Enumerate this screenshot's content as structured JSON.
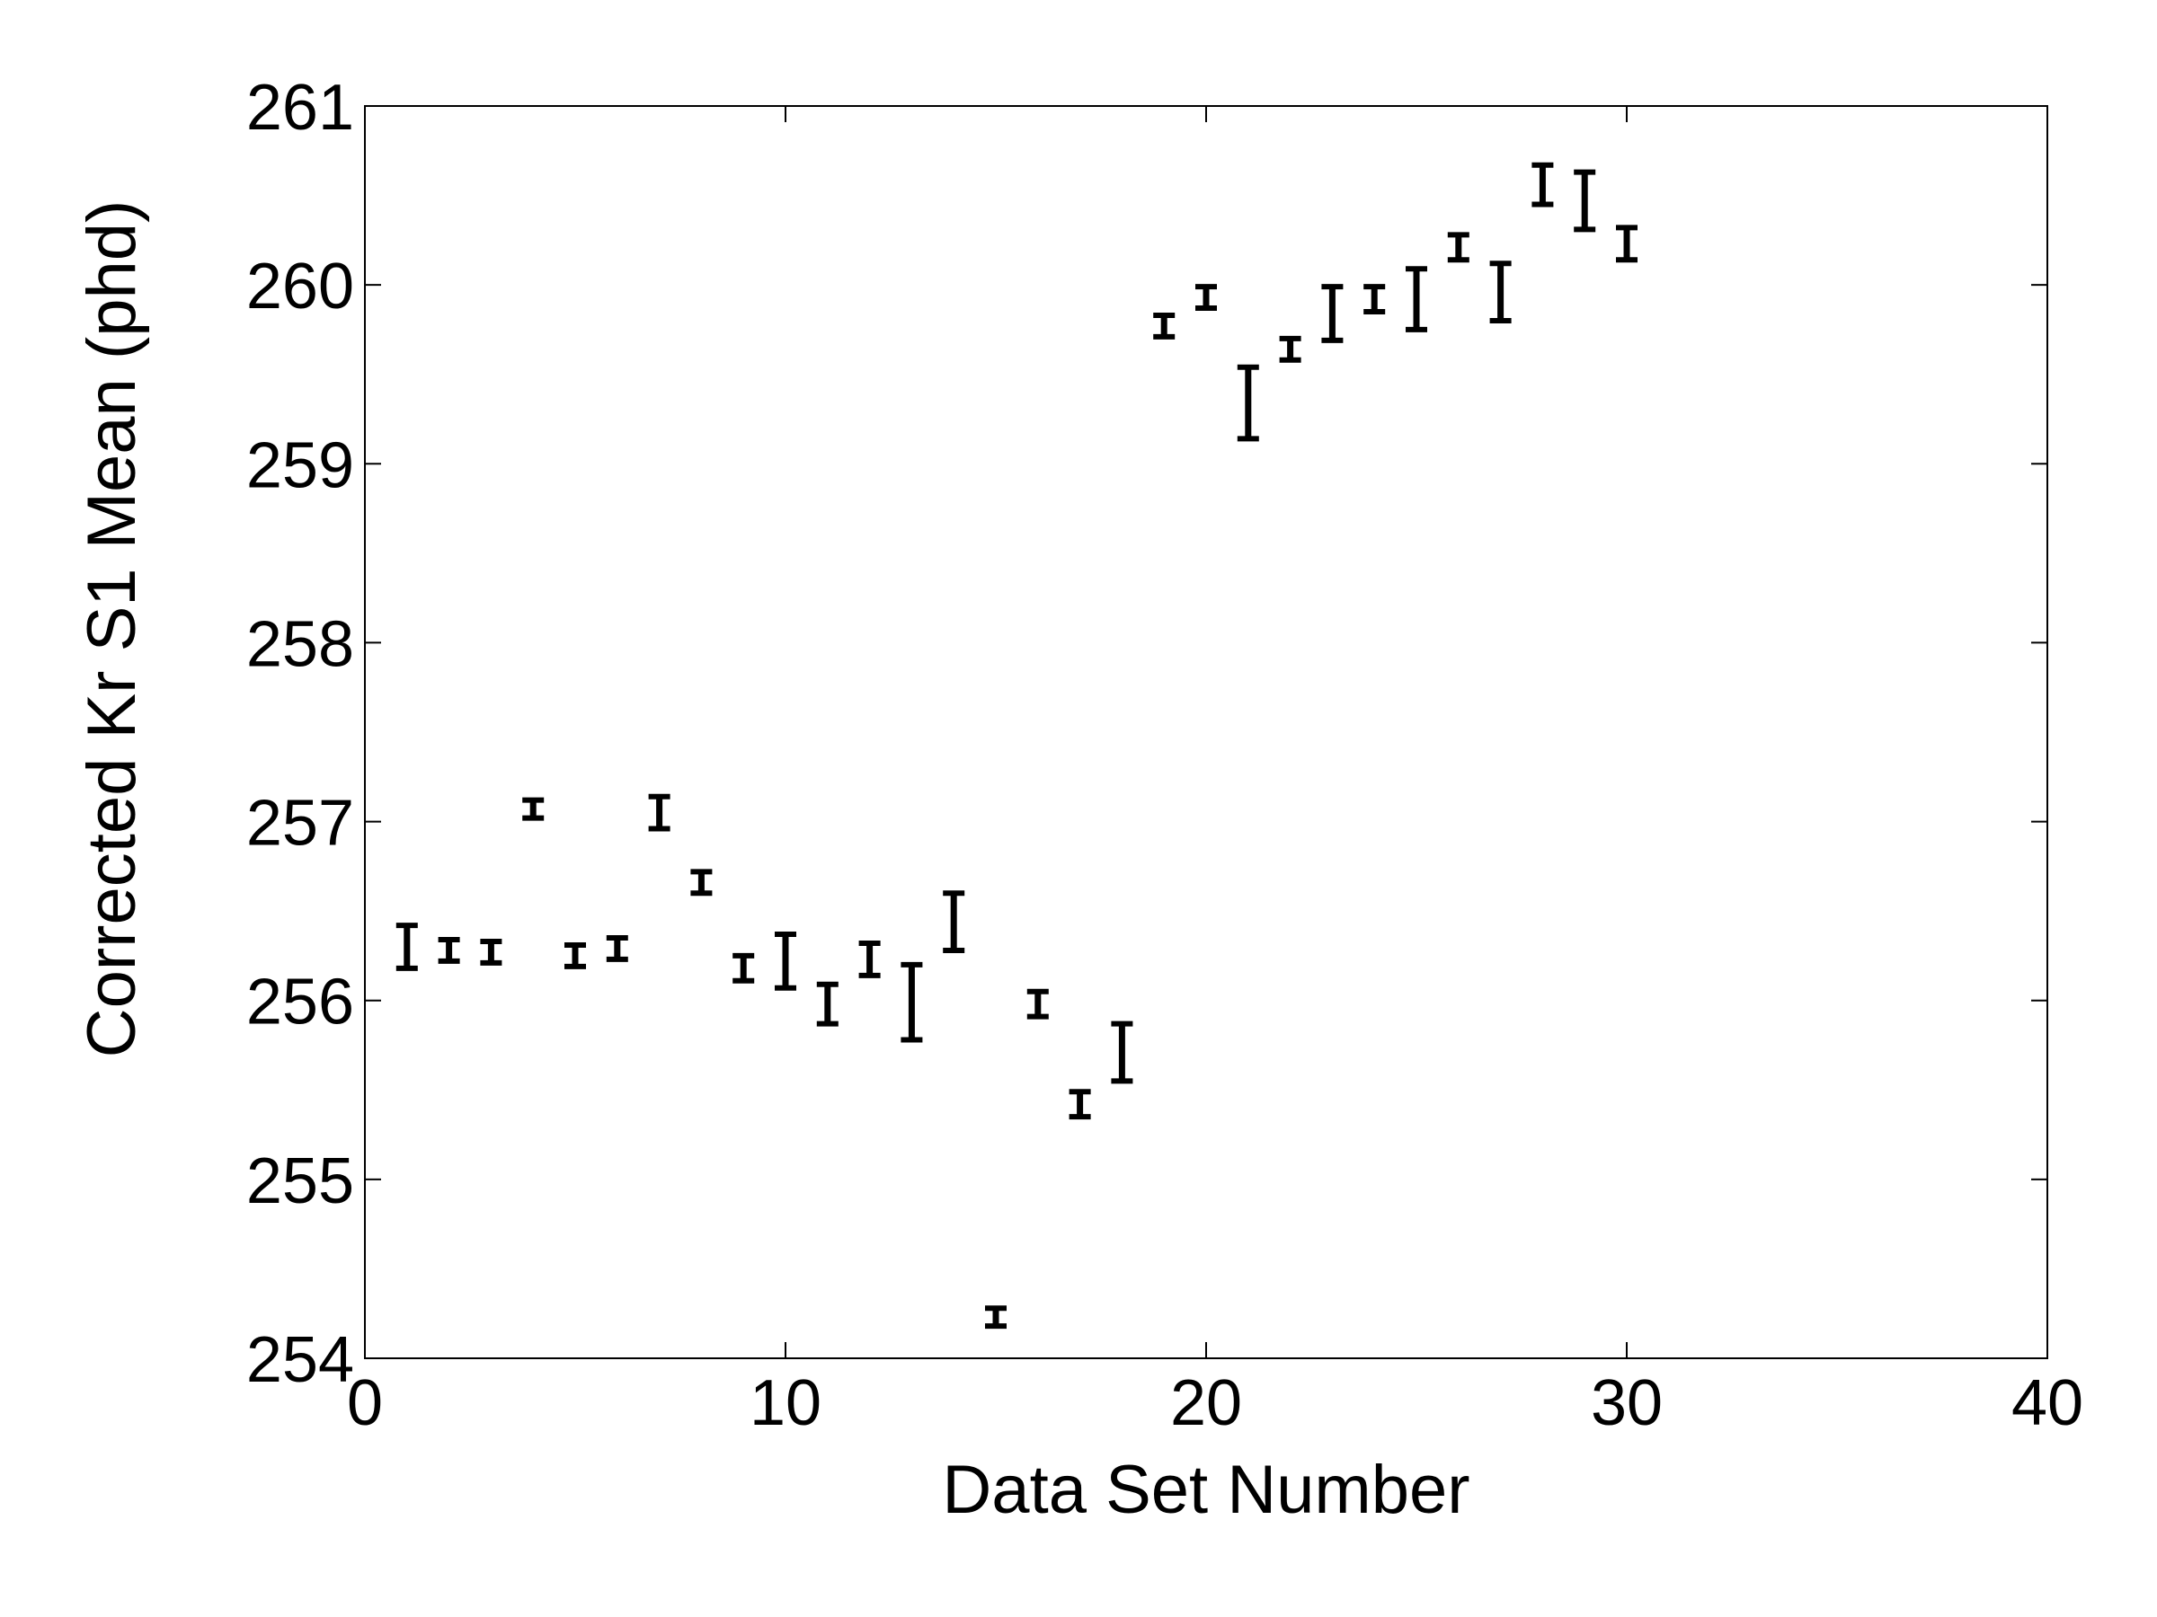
{
  "chart_data": {
    "type": "scatter",
    "title": "",
    "xlabel": "Data Set Number",
    "ylabel": "Corrected Kr S1 Mean (phd)",
    "xlim": [
      0,
      40
    ],
    "ylim": [
      254,
      261
    ],
    "xticks": [
      "0",
      "10",
      "20",
      "30",
      "40"
    ],
    "yticks": [
      "254",
      "255",
      "256",
      "257",
      "258",
      "259",
      "260",
      "261"
    ],
    "grid": false,
    "legend": "none",
    "color": "#000000",
    "points": [
      {
        "x": 1,
        "y": 256.3,
        "err": 0.12
      },
      {
        "x": 2,
        "y": 256.28,
        "err": 0.06
      },
      {
        "x": 3,
        "y": 256.27,
        "err": 0.06
      },
      {
        "x": 4,
        "y": 257.07,
        "err": 0.05
      },
      {
        "x": 5,
        "y": 256.25,
        "err": 0.06
      },
      {
        "x": 6,
        "y": 256.29,
        "err": 0.06
      },
      {
        "x": 7,
        "y": 257.05,
        "err": 0.09
      },
      {
        "x": 8,
        "y": 256.66,
        "err": 0.06
      },
      {
        "x": 9,
        "y": 256.18,
        "err": 0.07
      },
      {
        "x": 10,
        "y": 256.22,
        "err": 0.15
      },
      {
        "x": 11,
        "y": 255.98,
        "err": 0.11
      },
      {
        "x": 12,
        "y": 256.23,
        "err": 0.09
      },
      {
        "x": 13,
        "y": 255.99,
        "err": 0.21
      },
      {
        "x": 14,
        "y": 256.44,
        "err": 0.16
      },
      {
        "x": 15,
        "y": 254.23,
        "err": 0.05
      },
      {
        "x": 16,
        "y": 255.98,
        "err": 0.07
      },
      {
        "x": 17,
        "y": 255.42,
        "err": 0.07
      },
      {
        "x": 18,
        "y": 255.71,
        "err": 0.16
      },
      {
        "x": 19,
        "y": 259.77,
        "err": 0.06
      },
      {
        "x": 20,
        "y": 259.93,
        "err": 0.06
      },
      {
        "x": 21,
        "y": 259.34,
        "err": 0.2
      },
      {
        "x": 22,
        "y": 259.64,
        "err": 0.06
      },
      {
        "x": 23,
        "y": 259.84,
        "err": 0.15
      },
      {
        "x": 24,
        "y": 259.92,
        "err": 0.07
      },
      {
        "x": 25,
        "y": 259.92,
        "err": 0.17
      },
      {
        "x": 26,
        "y": 260.21,
        "err": 0.07
      },
      {
        "x": 27,
        "y": 259.96,
        "err": 0.16
      },
      {
        "x": 28,
        "y": 260.56,
        "err": 0.11
      },
      {
        "x": 29,
        "y": 260.47,
        "err": 0.16
      },
      {
        "x": 30,
        "y": 260.23,
        "err": 0.09
      }
    ]
  }
}
